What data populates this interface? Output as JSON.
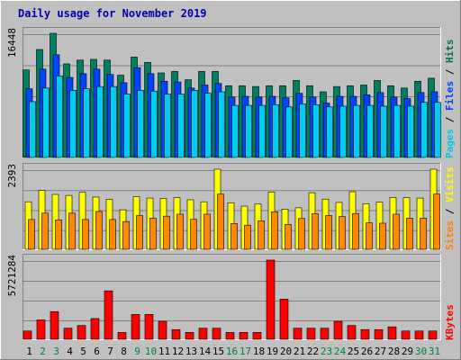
{
  "chart_data": {
    "type": "bar",
    "title": "Daily usage for November 2019",
    "days": [
      "1",
      "2",
      "3",
      "4",
      "5",
      "6",
      "7",
      "8",
      "9",
      "10",
      "11",
      "12",
      "13",
      "14",
      "15",
      "16",
      "17",
      "18",
      "19",
      "20",
      "21",
      "22",
      "23",
      "24",
      "25",
      "26",
      "27",
      "28",
      "29",
      "30",
      "31"
    ],
    "weekend_days": [
      "2",
      "3",
      "9",
      "10",
      "16",
      "17",
      "23",
      "24",
      "30",
      "31"
    ],
    "panels": [
      {
        "name": "hits-files-pages",
        "max_label": "16448",
        "ymax": 16448,
        "legend": [
          {
            "label": "Pages",
            "color": "#00C8E8"
          },
          {
            "label": "Files",
            "color": "#0040FF"
          },
          {
            "label": "Hits",
            "color": "#007050"
          }
        ],
        "series": [
          {
            "name": "Hits",
            "color": "#008060",
            "values": [
              11600,
              14300,
              16448,
              12400,
              12900,
              13000,
              12900,
              10900,
              13300,
              12600,
              11200,
              11400,
              10300,
              11400,
              11400,
              9500,
              9500,
              9400,
              9500,
              9500,
              10200,
              9500,
              8700,
              9400,
              9500,
              9600,
              10200,
              9500,
              9200,
              10100,
              10500
            ]
          },
          {
            "name": "Files",
            "color": "#0044FF",
            "values": [
              9100,
              11700,
              13600,
              10600,
              11100,
              11700,
              11000,
              9900,
              11900,
              11100,
              10100,
              10000,
              9200,
              9600,
              9800,
              8000,
              8100,
              8000,
              8100,
              7900,
              8500,
              8000,
              7200,
              8100,
              8100,
              8300,
              8600,
              8000,
              7800,
              8600,
              8700
            ]
          },
          {
            "name": "Pages",
            "color": "#00CCEE",
            "values": [
              7400,
              9200,
              10800,
              8900,
              9100,
              9400,
              9400,
              8400,
              8900,
              8800,
              8400,
              8400,
              8900,
              8500,
              8700,
              6900,
              6900,
              6900,
              7000,
              6700,
              7100,
              7000,
              6700,
              6800,
              6900,
              6900,
              6800,
              6900,
              6800,
              7300,
              7300
            ]
          }
        ]
      },
      {
        "name": "visits-sites",
        "max_label": "2393",
        "ymax": 2393,
        "legend": [
          {
            "label": "Sites",
            "color": "#FF8000"
          },
          {
            "label": "Visits",
            "color": "#FFFF00"
          }
        ],
        "series": [
          {
            "name": "Visits",
            "color": "#FFFF00",
            "values": [
              1420,
              1760,
              1640,
              1610,
              1700,
              1560,
              1490,
              1180,
              1570,
              1530,
              1520,
              1540,
              1480,
              1420,
              2393,
              1390,
              1290,
              1350,
              1710,
              1200,
              1240,
              1690,
              1500,
              1400,
              1720,
              1360,
              1410,
              1550,
              1540,
              1530,
              2393
            ]
          },
          {
            "name": "Sites",
            "color": "#FF8800",
            "values": [
              890,
              1080,
              880,
              1080,
              890,
              1130,
              890,
              830,
              1010,
              930,
              990,
              1050,
              900,
              1050,
              1650,
              770,
              720,
              850,
              1120,
              740,
              920,
              1060,
              1010,
              980,
              1070,
              790,
              780,
              1050,
              930,
              930,
              1650
            ]
          }
        ]
      },
      {
        "name": "kbytes",
        "max_label": "5721284",
        "ymax": 5721284,
        "legend": [
          {
            "label": "KBytes",
            "color": "#FF0000"
          }
        ],
        "series": [
          {
            "name": "KBytes",
            "color": "#FF0000",
            "values": [
              600000,
              1400000,
              2000000,
              800000,
              1000000,
              1500000,
              3500000,
              500000,
              1800000,
              1800000,
              1300000,
              700000,
              500000,
              800000,
              800000,
              500000,
              500000,
              500000,
              5721284,
              2900000,
              800000,
              800000,
              800000,
              1300000,
              1000000,
              700000,
              700000,
              900000,
              600000,
              600000,
              600000
            ]
          }
        ]
      }
    ]
  }
}
